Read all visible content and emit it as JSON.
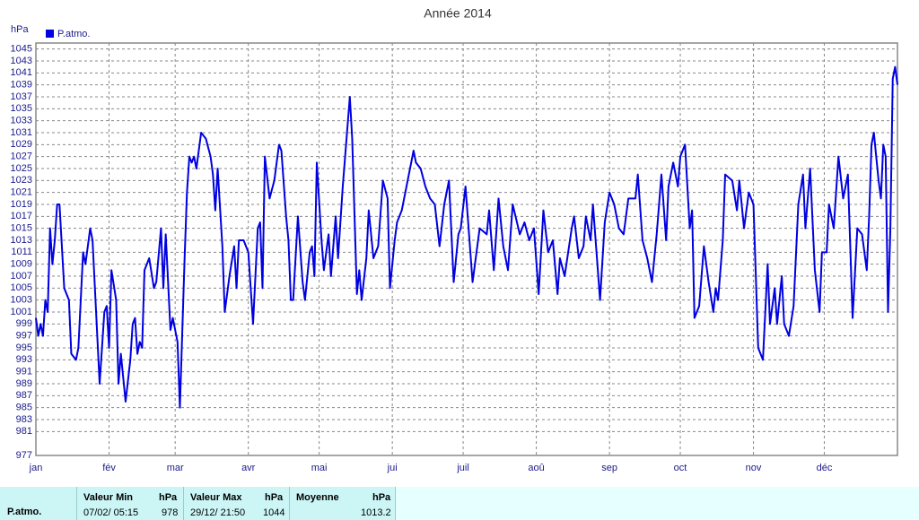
{
  "chart_data": {
    "type": "line",
    "title": "Année 2014",
    "y_label": "hPa",
    "xlim": [
      0,
      365
    ],
    "ylim": [
      977,
      1046
    ],
    "xticks": [
      {
        "value": 0,
        "label": "jan"
      },
      {
        "value": 31,
        "label": "fév"
      },
      {
        "value": 59,
        "label": "mar"
      },
      {
        "value": 90,
        "label": "avr"
      },
      {
        "value": 120,
        "label": "mai"
      },
      {
        "value": 151,
        "label": "jui"
      },
      {
        "value": 181,
        "label": "juil"
      },
      {
        "value": 212,
        "label": "aoû"
      },
      {
        "value": 243,
        "label": "sep"
      },
      {
        "value": 273,
        "label": "oct"
      },
      {
        "value": 304,
        "label": "nov"
      },
      {
        "value": 334,
        "label": "déc"
      }
    ],
    "yticks": [
      977,
      981,
      983,
      985,
      987,
      989,
      991,
      993,
      995,
      997,
      999,
      1001,
      1003,
      1005,
      1007,
      1009,
      1011,
      1013,
      1015,
      1017,
      1019,
      1021,
      1023,
      1025,
      1027,
      1029,
      1031,
      1033,
      1035,
      1037,
      1039,
      1041,
      1043,
      1045
    ],
    "grid": true,
    "series": [
      {
        "name": "P.atmo.",
        "color": "#0000e0",
        "x": [
          0,
          1,
          2,
          3,
          4,
          5,
          6,
          7,
          8,
          9,
          10,
          12,
          14,
          15,
          17,
          18,
          20,
          21,
          23,
          24,
          26,
          27,
          29,
          30,
          31,
          32,
          34,
          35,
          36,
          38,
          40,
          41,
          42,
          43,
          44,
          45,
          46,
          48,
          50,
          51,
          53,
          54,
          55,
          57,
          58,
          60,
          61,
          63,
          64,
          65,
          66,
          67,
          68,
          70,
          72,
          74,
          75,
          76,
          77,
          79,
          80,
          82,
          84,
          85,
          86,
          88,
          90,
          91,
          92,
          94,
          95,
          96,
          97,
          99,
          101,
          103,
          104,
          106,
          107,
          108,
          109,
          111,
          113,
          114,
          116,
          117,
          118,
          119,
          121,
          122,
          124,
          125,
          127,
          128,
          130,
          133,
          134,
          136,
          137,
          138,
          140,
          141,
          143,
          145,
          147,
          149,
          150,
          152,
          153,
          155,
          158,
          160,
          161,
          163,
          165,
          167,
          169,
          171,
          173,
          175,
          177,
          179,
          180,
          182,
          185,
          188,
          191,
          192,
          194,
          196,
          198,
          200,
          202,
          205,
          207,
          209,
          211,
          213,
          215,
          217,
          219,
          221,
          222,
          224,
          227,
          228,
          230,
          232,
          233,
          235,
          236,
          239,
          241,
          243,
          245,
          247,
          249,
          251,
          254,
          255,
          257,
          259,
          261,
          263,
          265,
          267,
          268,
          270,
          272,
          273,
          275,
          277,
          278,
          279,
          281,
          283,
          285,
          287,
          288,
          289,
          291,
          292,
          295,
          297,
          298,
          300,
          302,
          304,
          306,
          308,
          310,
          311,
          313,
          314,
          316,
          317,
          319,
          321,
          323,
          325,
          326,
          328,
          330,
          332,
          333,
          335,
          336,
          338,
          340,
          342,
          344,
          346,
          348,
          350,
          352,
          353,
          354,
          355,
          357,
          358,
          359,
          360,
          361,
          362,
          363,
          364,
          365
        ],
        "values": [
          1000,
          997,
          999,
          997,
          1003,
          1001,
          1015,
          1009,
          1013,
          1019,
          1019,
          1005,
          1003,
          994,
          993,
          995,
          1011,
          1009,
          1015,
          1013,
          997,
          989,
          1001,
          1002,
          995,
          1008,
          1003,
          989,
          994,
          986,
          993,
          999,
          1000,
          994,
          996,
          995,
          1008,
          1010,
          1005,
          1006,
          1015,
          1005,
          1014,
          998,
          1000,
          996,
          985,
          1010,
          1021,
          1027,
          1026,
          1027,
          1025,
          1031,
          1030,
          1027,
          1024,
          1018,
          1025,
          1012,
          1001,
          1007,
          1012,
          1005,
          1013,
          1013,
          1011,
          1005,
          999,
          1015,
          1016,
          1005,
          1027,
          1020,
          1023,
          1029,
          1028,
          1017,
          1013,
          1003,
          1003,
          1017,
          1006,
          1003,
          1011,
          1012,
          1007,
          1026,
          1013,
          1008,
          1014,
          1007,
          1017,
          1010,
          1022,
          1037,
          1030,
          1004,
          1008,
          1003,
          1010,
          1018,
          1010,
          1012,
          1023,
          1020,
          1005,
          1013,
          1016,
          1018,
          1024,
          1028,
          1026,
          1025,
          1022,
          1020,
          1019,
          1012,
          1019,
          1023,
          1006,
          1014,
          1015,
          1022,
          1006,
          1015,
          1014,
          1018,
          1008,
          1020,
          1012,
          1008,
          1019,
          1014,
          1016,
          1013,
          1015,
          1004,
          1018,
          1011,
          1013,
          1004,
          1010,
          1007,
          1015,
          1017,
          1010,
          1012,
          1017,
          1013,
          1019,
          1003,
          1016,
          1021,
          1019,
          1015,
          1014,
          1020,
          1020,
          1024,
          1013,
          1010,
          1006,
          1014,
          1024,
          1013,
          1022,
          1026,
          1022,
          1027,
          1029,
          1015,
          1018,
          1000,
          1002,
          1012,
          1006,
          1001,
          1005,
          1003,
          1013,
          1024,
          1023,
          1018,
          1023,
          1015,
          1021,
          1019,
          995,
          993,
          1009,
          999,
          1005,
          999,
          1007,
          999,
          997,
          1002,
          1019,
          1024,
          1015,
          1025,
          1008,
          1001,
          1011,
          1011,
          1019,
          1015,
          1027,
          1020,
          1024,
          1000,
          1015,
          1014,
          1008,
          1017,
          1029,
          1031,
          1023,
          1020,
          1029,
          1027,
          1001,
          1015,
          1040,
          1042,
          1039
        ]
      }
    ]
  },
  "summary_table": {
    "row_label": "P.atmo.",
    "headers": [
      "Valeur Min",
      "hPa",
      "Valeur Max",
      "hPa",
      "Moyenne",
      "hPa"
    ],
    "cells": [
      "07/02/ 05:15",
      "978",
      "29/12/ 21:50",
      "1044",
      "1013.2"
    ]
  }
}
